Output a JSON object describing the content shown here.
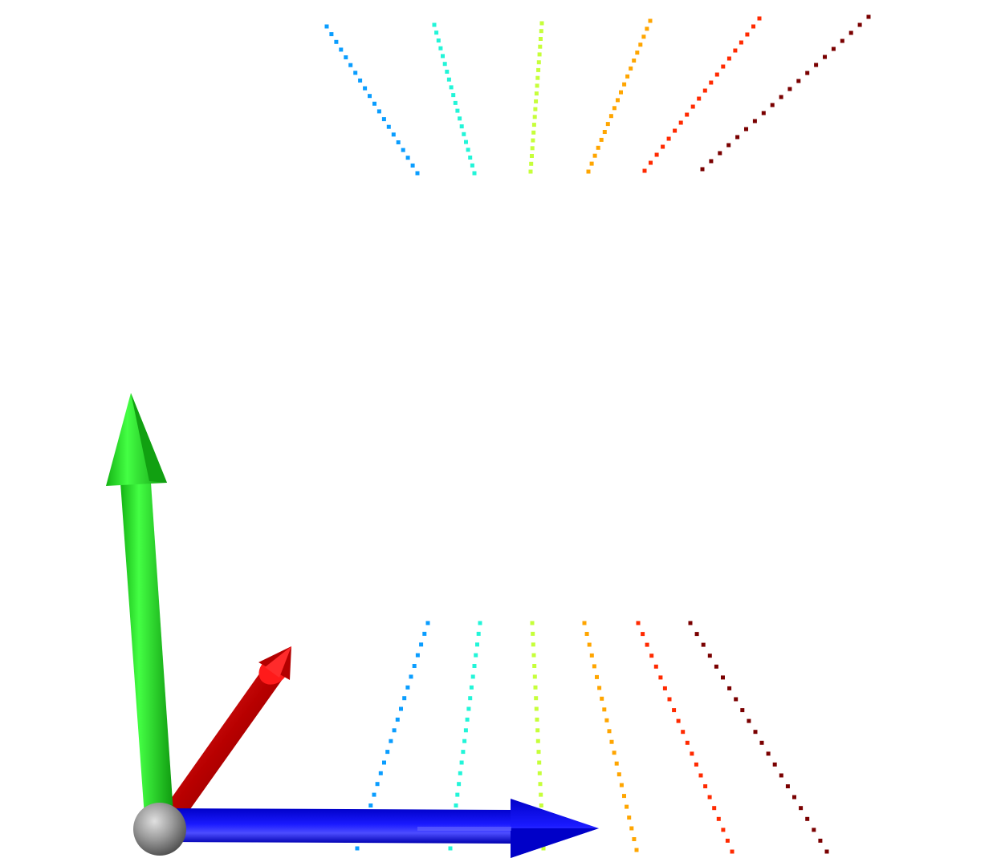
{
  "scene": {
    "background": "#ffffff",
    "axes": {
      "x_axis_color": "#cc0000",
      "x_axis_cap_color": "#ff1a1a",
      "y_axis_color": "#22e622",
      "z_axis_color": "#0000ee",
      "origin_color": "#9a9a9a"
    },
    "point_lines": [
      {
        "color": "#0a9dff"
      },
      {
        "color": "#22f5d8"
      },
      {
        "color": "#c6ff3a"
      },
      {
        "color": "#ffa500"
      },
      {
        "color": "#ff2a00"
      },
      {
        "color": "#7a0000"
      }
    ]
  }
}
